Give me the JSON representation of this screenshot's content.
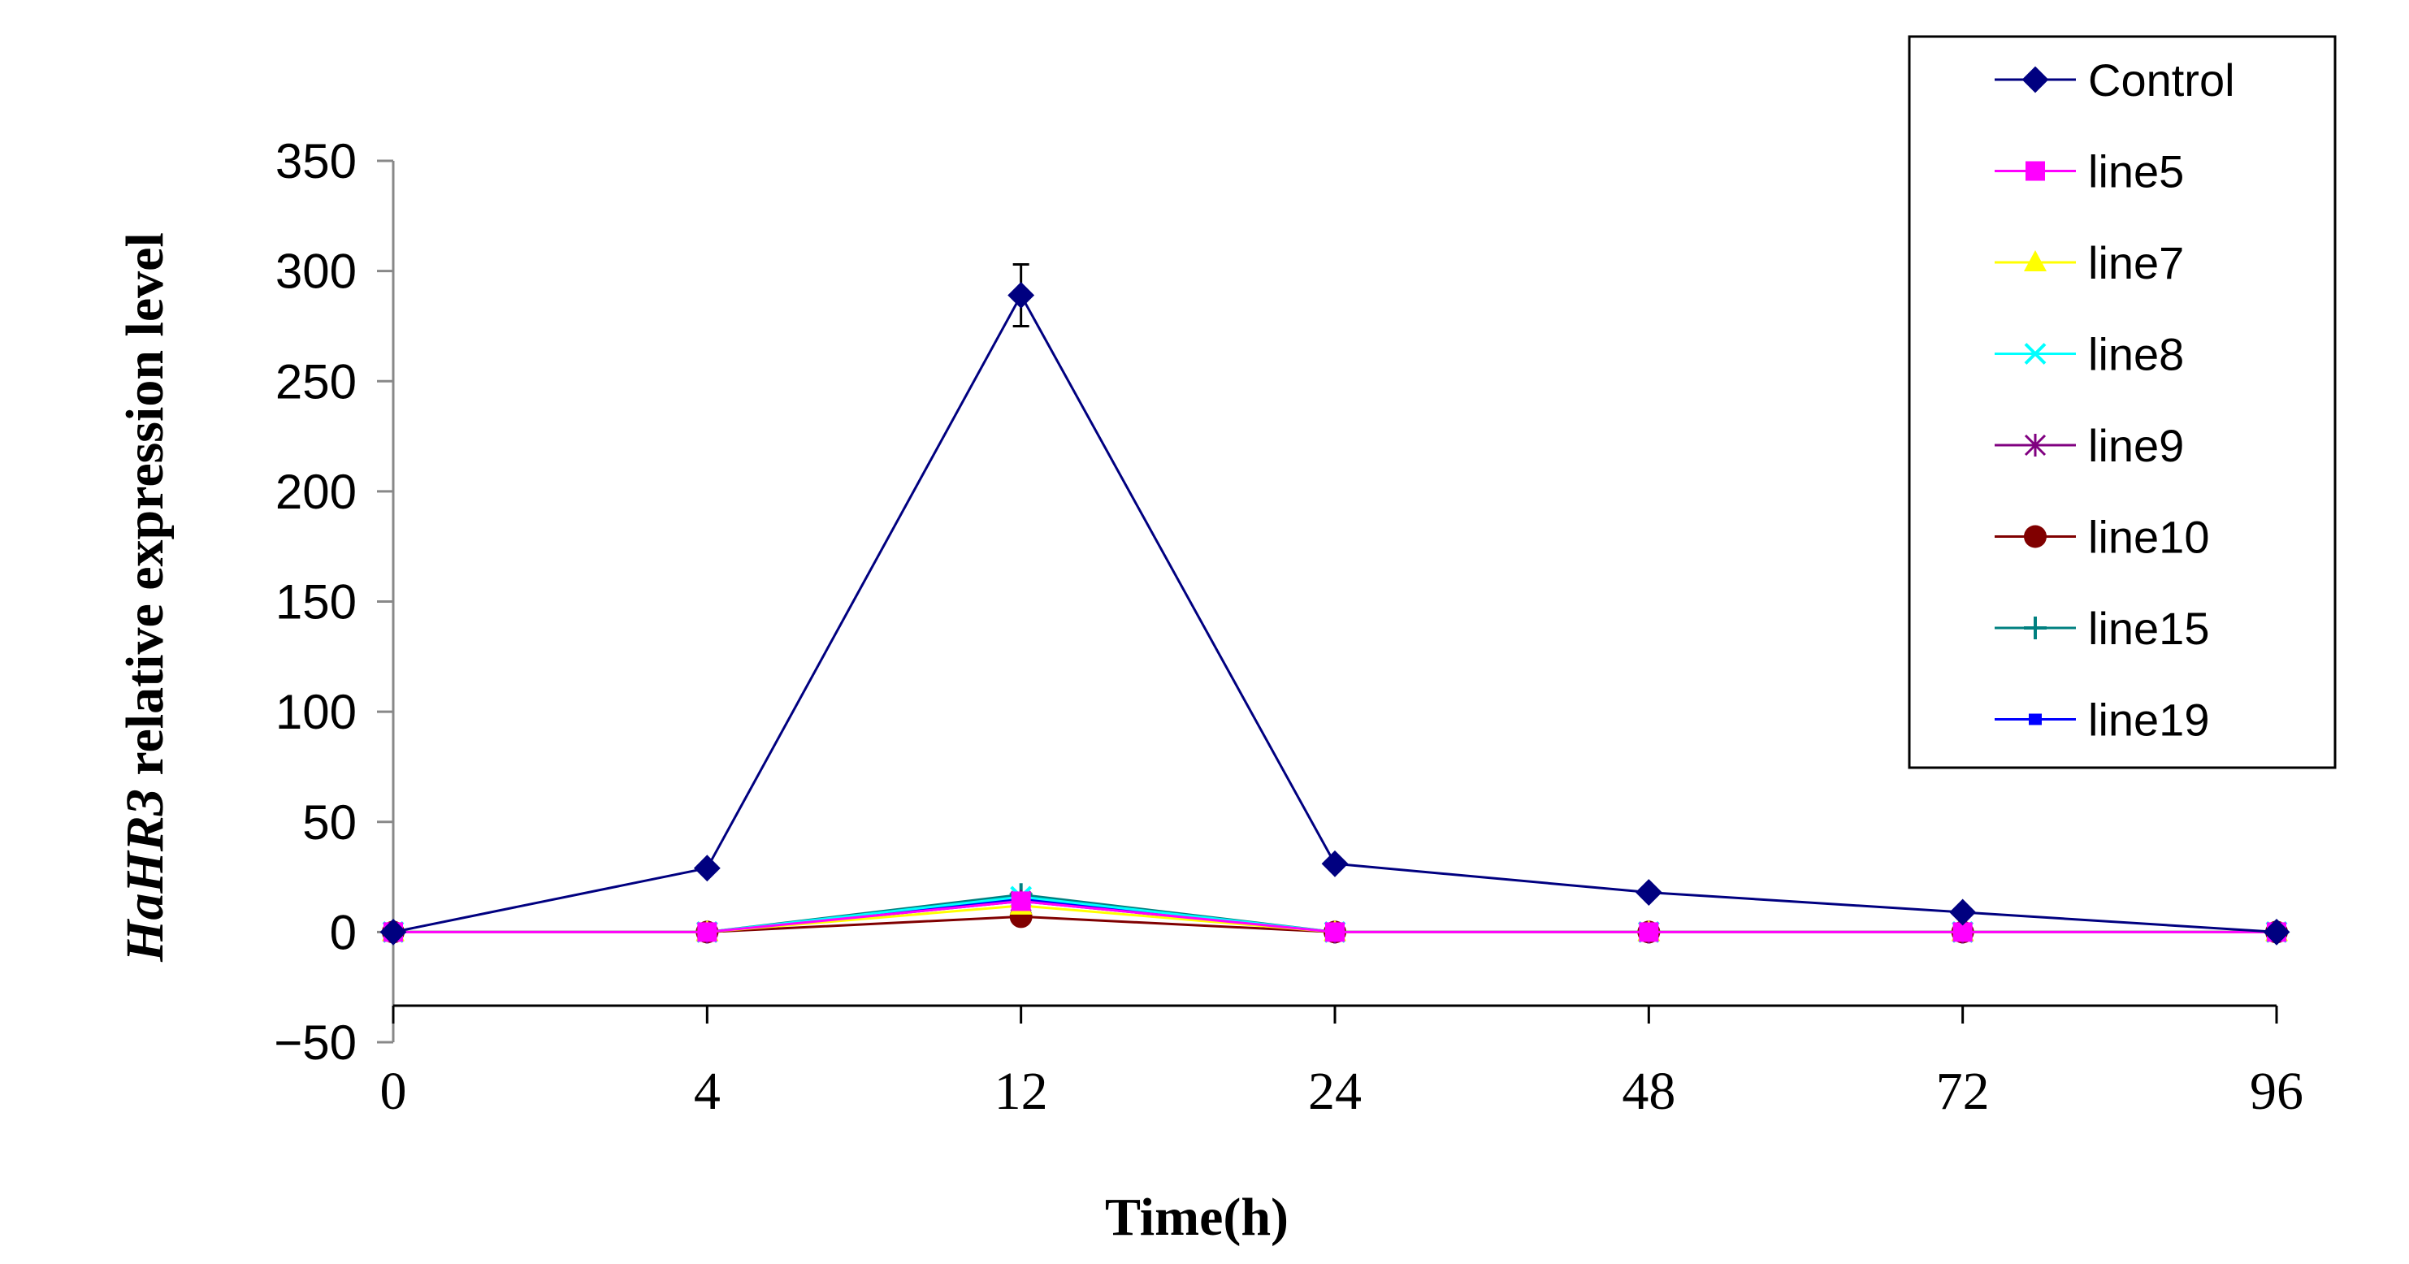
{
  "chart_data": {
    "type": "line",
    "x": [
      "0",
      "4",
      "12",
      "24",
      "48",
      "72",
      "96"
    ],
    "xlabel": "Time(h)",
    "ylabel_italic": "HaHR3",
    "ylabel_rest": " relative expression level",
    "ylim": [
      -50,
      350
    ],
    "yticks": [
      -50,
      0,
      50,
      100,
      150,
      200,
      250,
      300,
      350
    ],
    "yticklabels": [
      "−50",
      "0",
      "50",
      "100",
      "150",
      "200",
      "250",
      "300",
      "350"
    ],
    "grid": false,
    "legend_position": "top-right",
    "series": [
      {
        "name": "Control",
        "color": "#000080",
        "marker": "diamond",
        "values": [
          0,
          29,
          289,
          31,
          18,
          9,
          0
        ],
        "error": [
          0,
          0,
          14,
          0,
          0,
          0,
          0
        ]
      },
      {
        "name": "line5",
        "color": "#ff00ff",
        "marker": "square",
        "values": [
          0,
          0,
          14,
          0,
          0,
          0,
          0
        ]
      },
      {
        "name": "line7",
        "color": "#ffff00",
        "marker": "triangle",
        "values": [
          0,
          0,
          12,
          0,
          0,
          0,
          0
        ]
      },
      {
        "name": "line8",
        "color": "#00ffff",
        "marker": "x",
        "values": [
          0,
          0,
          16,
          0,
          0,
          0,
          0
        ]
      },
      {
        "name": "line9",
        "color": "#800080",
        "marker": "asterisk",
        "values": [
          0,
          0,
          14,
          0,
          0,
          0,
          0
        ]
      },
      {
        "name": "line10",
        "color": "#800000",
        "marker": "circle",
        "values": [
          0,
          0,
          7,
          0,
          0,
          0,
          0
        ]
      },
      {
        "name": "line15",
        "color": "#008080",
        "marker": "plus",
        "values": [
          0,
          0,
          17,
          0,
          0,
          0,
          0
        ]
      },
      {
        "name": "line19",
        "color": "#0000ff",
        "marker": "smallsquare",
        "values": [
          0,
          0,
          15,
          0,
          0,
          0,
          0
        ]
      }
    ]
  }
}
